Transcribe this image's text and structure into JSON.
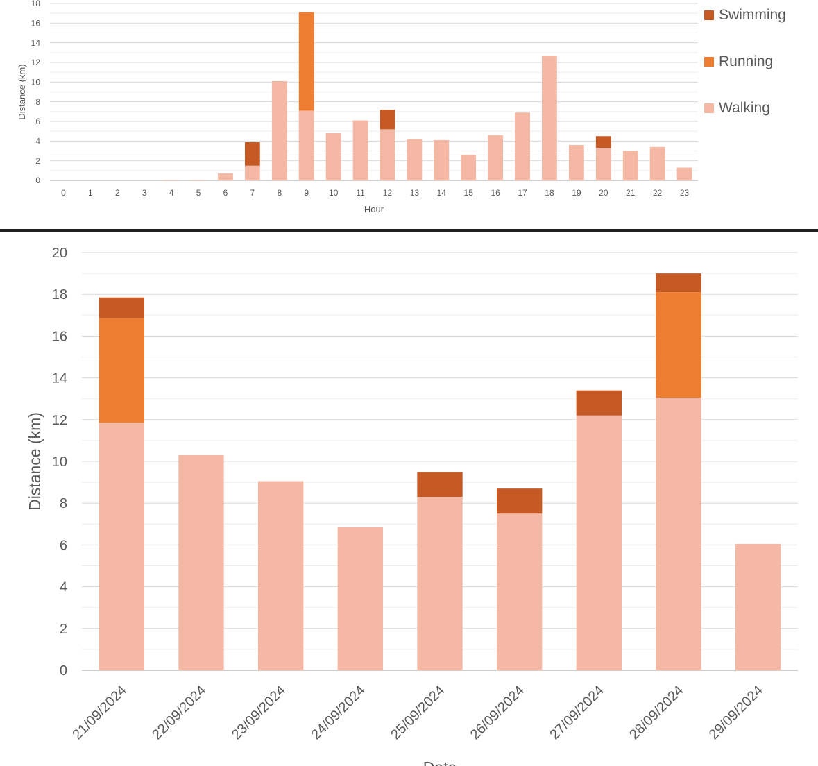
{
  "colors": {
    "walking": "#F4B8A5",
    "running": "#ED7D31",
    "swimming": "#C55A24",
    "gridMajor": "#D9D9D9",
    "gridMinor": "#EDEDED",
    "divider": "#1F1F1F"
  },
  "chart_data": [
    {
      "type": "bar",
      "stacked": true,
      "title": "",
      "xlabel": "Hour",
      "ylabel": "Distance (km)",
      "ylim": [
        0,
        18
      ],
      "yticks": [
        0,
        2,
        4,
        6,
        8,
        10,
        12,
        14,
        16,
        18
      ],
      "grid": true,
      "legend": "right",
      "legend_order": [
        "Swimming",
        "Running",
        "Walking"
      ],
      "categories": [
        "0",
        "1",
        "2",
        "3",
        "4",
        "5",
        "6",
        "7",
        "8",
        "9",
        "10",
        "11",
        "12",
        "13",
        "14",
        "15",
        "16",
        "17",
        "18",
        "19",
        "20",
        "21",
        "22",
        "23"
      ],
      "series": [
        {
          "name": "Walking",
          "color_key": "walking",
          "values": [
            0,
            0,
            0,
            0,
            0.05,
            0.05,
            0.7,
            1.5,
            10.1,
            7.1,
            4.8,
            6.1,
            5.2,
            4.2,
            4.1,
            2.6,
            4.6,
            6.9,
            12.7,
            3.6,
            3.3,
            3.0,
            3.4,
            1.3
          ]
        },
        {
          "name": "Running",
          "color_key": "running",
          "values": [
            0,
            0,
            0,
            0,
            0,
            0,
            0,
            0,
            0,
            10.0,
            0,
            0,
            0,
            0,
            0,
            0,
            0,
            0,
            0,
            0,
            0,
            0,
            0,
            0
          ]
        },
        {
          "name": "Swimming",
          "color_key": "swimming",
          "values": [
            0,
            0,
            0,
            0,
            0,
            0,
            0,
            2.4,
            0,
            0,
            0,
            0,
            2.0,
            0,
            0,
            0,
            0,
            0,
            0,
            0,
            1.2,
            0,
            0,
            0
          ]
        }
      ]
    },
    {
      "type": "bar",
      "stacked": true,
      "title": "",
      "xlabel": "Date",
      "ylabel": "Distance (km)",
      "ylim": [
        0,
        20
      ],
      "yticks": [
        0,
        2,
        4,
        6,
        8,
        10,
        12,
        14,
        16,
        18,
        20
      ],
      "grid": true,
      "legend": "none",
      "categories": [
        "21/09/2024",
        "22/09/2024",
        "23/09/2024",
        "24/09/2024",
        "25/09/2024",
        "26/09/2024",
        "27/09/2024",
        "28/09/2024",
        "29/09/2024"
      ],
      "series": [
        {
          "name": "Walking",
          "color_key": "walking",
          "values": [
            11.85,
            10.3,
            9.05,
            6.85,
            8.3,
            7.5,
            12.2,
            13.05,
            6.05
          ]
        },
        {
          "name": "Running",
          "color_key": "running",
          "values": [
            5.0,
            0,
            0,
            0,
            0,
            0,
            0,
            5.05,
            0
          ]
        },
        {
          "name": "Swimming",
          "color_key": "swimming",
          "values": [
            1.0,
            0,
            0,
            0,
            1.2,
            1.2,
            1.2,
            0.9,
            0
          ]
        }
      ]
    }
  ]
}
